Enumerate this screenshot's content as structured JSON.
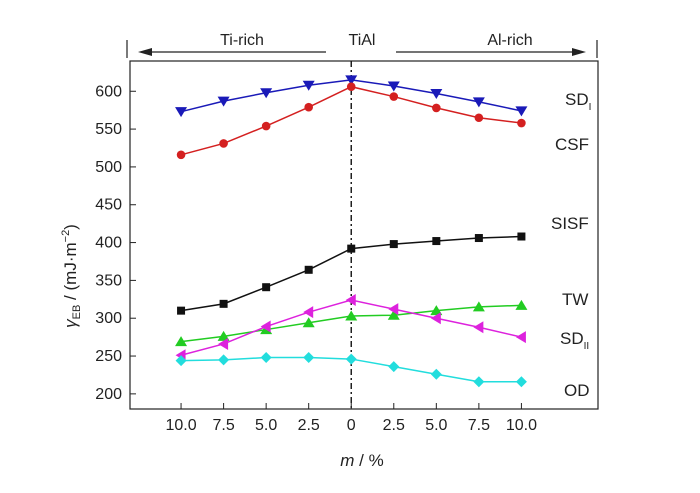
{
  "chart_data": {
    "type": "line",
    "title": "",
    "xlabel": {
      "main": "m",
      "unit": " / %"
    },
    "ylabel": {
      "symbol": "γ",
      "sub": "EB",
      "unit": " / (mJ·m",
      "sup": "−2",
      "close": ")"
    },
    "ylim": [
      180,
      640
    ],
    "xlim": [
      -1.2,
      9.8
    ],
    "yticks": [
      200,
      250,
      300,
      350,
      400,
      450,
      500,
      550,
      600
    ],
    "xticks": [
      0,
      1,
      2,
      3,
      4,
      5,
      6,
      7,
      8
    ],
    "xtick_labels": [
      "10.0",
      "7.5",
      "5.0",
      "2.5",
      "0",
      "2.5",
      "5.0",
      "7.5",
      "10.0"
    ],
    "grid": false,
    "regions": {
      "left": "Ti-rich",
      "center": "TiAl",
      "right": "Al-rich"
    },
    "series": [
      {
        "name": "SD",
        "name_sub": "I",
        "color": "#1a1ab8",
        "marker": "triangle-down",
        "values": [
          573,
          587,
          598,
          608,
          615,
          607,
          597,
          586,
          574
        ]
      },
      {
        "name": "CSF",
        "color": "#d42020",
        "marker": "circle",
        "values": [
          516,
          531,
          554,
          579,
          606,
          593,
          578,
          565,
          558
        ]
      },
      {
        "name": "SISF",
        "color": "#111111",
        "marker": "square",
        "values": [
          310,
          319,
          341,
          364,
          392,
          398,
          402,
          406,
          408
        ]
      },
      {
        "name": "TW",
        "color": "#22cc22",
        "marker": "triangle-up",
        "values": [
          269,
          276,
          285,
          294,
          303,
          304,
          310,
          315,
          317
        ]
      },
      {
        "name": "SD",
        "name_sub": "II",
        "color": "#dd22dd",
        "marker": "triangle-left",
        "values": [
          251,
          266,
          289,
          308,
          324,
          312,
          300,
          288,
          275
        ]
      },
      {
        "name": "OD",
        "color": "#22dddd",
        "marker": "diamond",
        "values": [
          244,
          245,
          248,
          248,
          246,
          236,
          226,
          216,
          216
        ]
      }
    ]
  }
}
